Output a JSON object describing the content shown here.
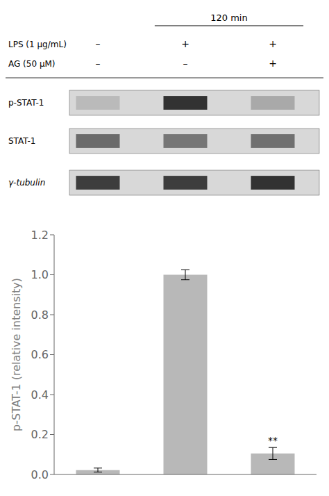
{
  "chart_data": {
    "type": "bar",
    "categories": [
      null,
      null,
      null
    ],
    "values": [
      0.022,
      1.0,
      0.105
    ],
    "errors": [
      0.01,
      0.025,
      0.03
    ],
    "color": "#b8b8b8",
    "ylabel": "p-STAT-1 (relative intensity)",
    "ylim": [
      0,
      1.2
    ],
    "yticks": [
      {
        "value": 0.0,
        "label": "0.0"
      },
      0.2,
      0.4,
      0.6,
      0.8,
      {
        "value": 1.0,
        "label": "1.0"
      },
      1.2
    ],
    "annotations": [
      {
        "text": "**",
        "category": 2
      }
    ],
    "header": "120 min",
    "conditions": [
      {
        "label": "LPS (1 μg/mL)",
        "signs": [
          "–",
          "+",
          "+"
        ]
      },
      {
        "label": "AG (50 μM)",
        "signs": [
          "–",
          "–",
          "+"
        ]
      }
    ],
    "blot_labels": [
      "p-STAT-1",
      "STAT-1",
      "γ-tubulin"
    ],
    "blot_intensities": [
      [
        0.08,
        0.88,
        0.18
      ],
      [
        0.55,
        0.48,
        0.52
      ],
      [
        0.82,
        0.82,
        0.88
      ]
    ]
  }
}
